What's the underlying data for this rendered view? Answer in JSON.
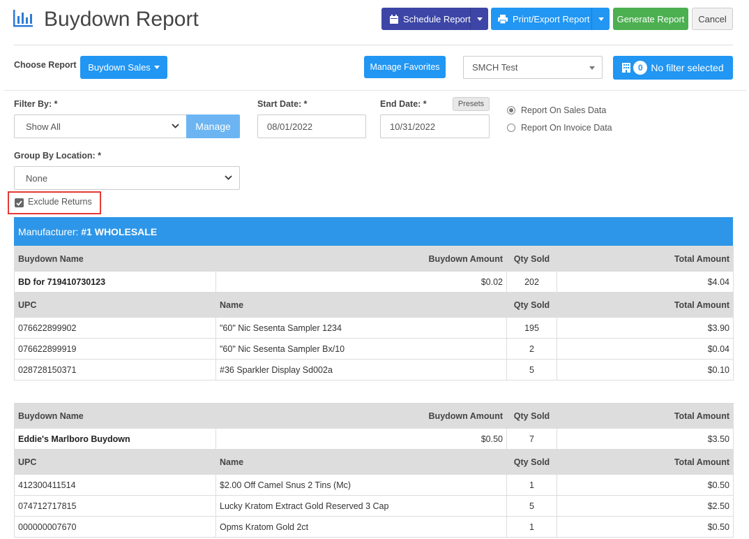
{
  "header": {
    "title": "Buydown Report",
    "schedule_label": "Schedule Report",
    "print_label": "Print/Export Report",
    "generate_label": "Generate Report",
    "cancel_label": "Cancel"
  },
  "toolbar": {
    "choose_report_label": "Choose Report",
    "report_dropdown_label": "Buydown Sales",
    "manage_favorites_label": "Manage Favorites",
    "store_select_value": "SMCH Test",
    "filter_count": "0",
    "filter_label": "No filter selected"
  },
  "form": {
    "filter_by_label": "Filter By: *",
    "filter_by_value": "Show All",
    "manage_label": "Manage",
    "start_date_label": "Start Date: *",
    "start_date_value": "08/01/2022",
    "end_date_label": "End Date: *",
    "presets_label": "Presets",
    "end_date_value": "10/31/2022",
    "radio_sales_label": "Report On Sales Data",
    "radio_invoice_label": "Report On Invoice Data",
    "radio_selected": "sales",
    "group_by_label": "Group By Location: *",
    "group_by_value": "None",
    "exclude_returns_label": "Exclude Returns",
    "exclude_returns_checked": true
  },
  "report": {
    "manufacturer_prefix": "Manufacturer: ",
    "manufacturer_name": "#1 WHOLESALE",
    "buydown_headers": [
      "Buydown Name",
      "Buydown Amount",
      "Qty Sold",
      "Total Amount"
    ],
    "upc_headers": [
      "UPC",
      "Name",
      "Qty Sold",
      "Total Amount"
    ],
    "groups": [
      {
        "buydown_name": "BD for 719410730123",
        "buydown_amount": "$0.02",
        "qty_sold": "202",
        "total_amount": "$4.04",
        "items": [
          {
            "upc": "076622899902",
            "name": "\"60\" Nic Sesenta Sampler 1234",
            "qty": "195",
            "total": "$3.90"
          },
          {
            "upc": "076622899919",
            "name": "\"60\" Nic Sesenta Sampler Bx/10",
            "qty": "2",
            "total": "$0.04"
          },
          {
            "upc": "028728150371",
            "name": "#36 Sparkler Display Sd002a",
            "qty": "5",
            "total": "$0.10"
          }
        ]
      },
      {
        "buydown_name": "Eddie's Marlboro Buydown",
        "buydown_amount": "$0.50",
        "qty_sold": "7",
        "total_amount": "$3.50",
        "items": [
          {
            "upc": "412300411514",
            "name": "$2.00 Off Camel Snus 2 Tins (Mc)",
            "qty": "1",
            "total": "$0.50"
          },
          {
            "upc": "074712717815",
            "name": "Lucky Kratom Extract Gold Reserved 3 Cap",
            "qty": "5",
            "total": "$2.50"
          },
          {
            "upc": "000000007670",
            "name": "Opms Kratom Gold 2ct",
            "qty": "1",
            "total": "$0.50"
          }
        ]
      }
    ]
  },
  "colors": {
    "indigo": "#3d45a6",
    "blue": "#2196f3",
    "green": "#4caf50",
    "manufacturer_bar": "#2e96e8",
    "highlight_red": "#e53935"
  },
  "icons": {
    "title": "bar-chart-icon",
    "schedule": "calendar-icon",
    "print": "printer-icon",
    "filter": "building-icon"
  }
}
